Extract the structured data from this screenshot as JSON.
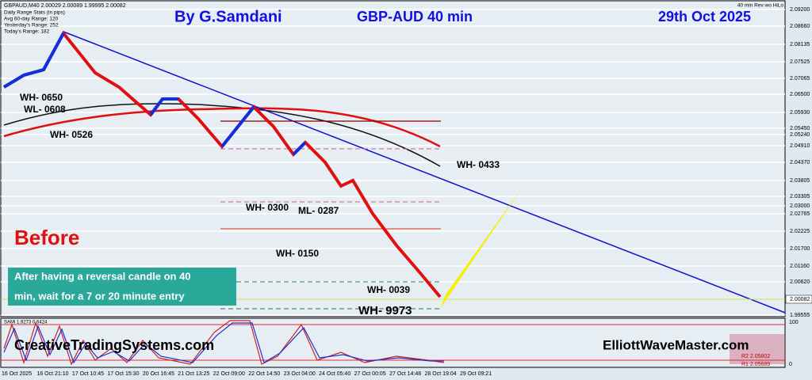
{
  "header": {
    "symbol_info": "GBPAUD,M40  2.00029 2.00089 1.99995 2.00082",
    "stats_title": "Daily Range Stats (in pips)",
    "avg_range": "Avg 60-day Range: 120",
    "yesterday_range": "Yesterday's Range: 252",
    "today_range": "Today's Range: 182",
    "author": "By G.Samdani",
    "pair": "GBP-AUD 40 min",
    "date": "29th  Oct 2025",
    "indicator_name": "40 min Rev wo HiLo"
  },
  "price_axis": [
    "2.09200",
    "2.08660",
    "2.08135",
    "2.07525",
    "2.07065",
    "2.06500",
    "2.05930",
    "2.05450",
    "2.05240",
    "2.04910",
    "2.04370",
    "2.03805",
    "2.03305",
    "2.03000",
    "2.02765",
    "2.02225",
    "2.01700",
    "2.01160",
    "2.00620",
    "2.00082",
    "1.99555"
  ],
  "time_axis": [
    "16 Oct 2025",
    "16 Oct 21:10",
    "17 Oct 10:45",
    "17 Oct 15:30",
    "20 Oct 16:45",
    "21 Oct 13:25",
    "22 Oct 09:00",
    "22 Oct 14:50",
    "23 Oct 04:00",
    "24 Oct 05:40",
    "27 Oct 00:05",
    "27 Oct 14:48",
    "28 Oct 19:04",
    "29 Oct 09:21"
  ],
  "levels": {
    "wh_0650": "WH- 0650",
    "wl_0608": "WL- 0608",
    "wh_0526": "WH- 0526",
    "wh_0433": "WH- 0433",
    "wh_0300": "WH- 0300",
    "ml_0287": "ML- 0287",
    "wh_0150": "WH- 0150",
    "wh_0039": "WH- 0039",
    "wh_9973": "WH- 9973"
  },
  "annotations": {
    "before": "Before",
    "note_line1": "After having a reversal candle on 40",
    "note_line2": "min, wait for a 7 or 20 minute entry",
    "left_site": "CreativeTradingSystems.com",
    "right_site": "ElliottWaveMaster.com"
  },
  "indicator": {
    "label": "SAMi 1.9273 0.6424",
    "scale_top": "100",
    "scale_bottom": "0",
    "r2": "R2 2.05802",
    "r1": "R1 2.05689"
  }
}
